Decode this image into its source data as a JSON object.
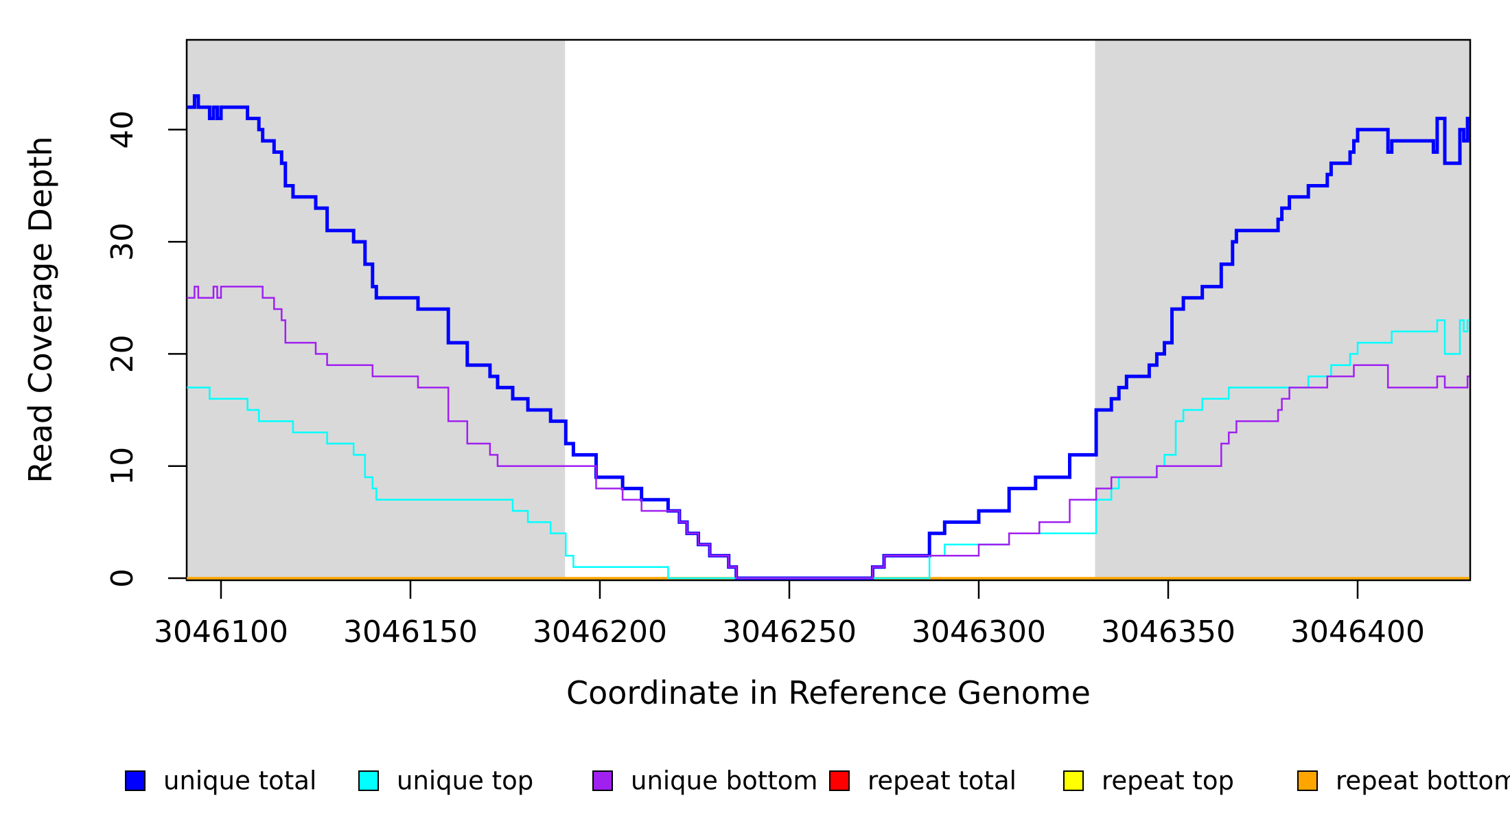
{
  "chart_data": {
    "type": "line",
    "subtype": "step-after-coverage",
    "title": "",
    "xlabel": "Coordinate in Reference Genome",
    "ylabel": "Read Coverage Depth",
    "x_range": [
      3046091,
      3046430
    ],
    "y_range": [
      0,
      48
    ],
    "x_ticks": [
      3046100,
      3046150,
      3046200,
      3046250,
      3046300,
      3046350,
      3046400
    ],
    "y_ticks": [
      0,
      10,
      20,
      30,
      40
    ],
    "grid": "off",
    "background_color": "#ffffff",
    "shaded_region_color": "#d9d9d9",
    "shaded_regions": [
      {
        "name": "left-repeat-region",
        "from": 3046091,
        "to": 3046190.8
      },
      {
        "name": "right-repeat-region",
        "from": 3046330.7,
        "to": 3046430
      }
    ],
    "legend": {
      "position": "bottom",
      "items": [
        {
          "label": "unique total",
          "color": "#0000FF"
        },
        {
          "label": "unique top",
          "color": "#00FFFF"
        },
        {
          "label": "unique bottom",
          "color": "#A020F0"
        },
        {
          "label": "repeat total",
          "color": "#FF0000"
        },
        {
          "label": "repeat top",
          "color": "#FFFF00"
        },
        {
          "label": "repeat bottom",
          "color": "#FFA500"
        }
      ]
    },
    "series": [
      {
        "name": "unique total",
        "color": "#0000FF",
        "width": 5,
        "z": 4,
        "points": [
          [
            3046091,
            42
          ],
          [
            3046093,
            43
          ],
          [
            3046094,
            42
          ],
          [
            3046097,
            41
          ],
          [
            3046098,
            42
          ],
          [
            3046099,
            41
          ],
          [
            3046100,
            42
          ],
          [
            3046107,
            41
          ],
          [
            3046110,
            40
          ],
          [
            3046111,
            39
          ],
          [
            3046114,
            38
          ],
          [
            3046116,
            37
          ],
          [
            3046117,
            35
          ],
          [
            3046119,
            34
          ],
          [
            3046125,
            33
          ],
          [
            3046128,
            31
          ],
          [
            3046135,
            30
          ],
          [
            3046138,
            28
          ],
          [
            3046140,
            26
          ],
          [
            3046141,
            25
          ],
          [
            3046152,
            24
          ],
          [
            3046160,
            21
          ],
          [
            3046165,
            19
          ],
          [
            3046171,
            18
          ],
          [
            3046173,
            17
          ],
          [
            3046177,
            16
          ],
          [
            3046181,
            15
          ],
          [
            3046187,
            14
          ],
          [
            3046191,
            12
          ],
          [
            3046193,
            11
          ],
          [
            3046199,
            9
          ],
          [
            3046206,
            8
          ],
          [
            3046211,
            7
          ],
          [
            3046218,
            6
          ],
          [
            3046221,
            5
          ],
          [
            3046223,
            4
          ],
          [
            3046226,
            3
          ],
          [
            3046229,
            2
          ],
          [
            3046234,
            1
          ],
          [
            3046236,
            0
          ],
          [
            3046272,
            1
          ],
          [
            3046275,
            2
          ],
          [
            3046287,
            4
          ],
          [
            3046291,
            5
          ],
          [
            3046300,
            6
          ],
          [
            3046308,
            8
          ],
          [
            3046315,
            9
          ],
          [
            3046324,
            11
          ],
          [
            3046331,
            15
          ],
          [
            3046335,
            16
          ],
          [
            3046337,
            17
          ],
          [
            3046339,
            18
          ],
          [
            3046345,
            19
          ],
          [
            3046347,
            20
          ],
          [
            3046349,
            21
          ],
          [
            3046351,
            24
          ],
          [
            3046354,
            25
          ],
          [
            3046359,
            26
          ],
          [
            3046364,
            28
          ],
          [
            3046367,
            30
          ],
          [
            3046368,
            31
          ],
          [
            3046379,
            32
          ],
          [
            3046380,
            33
          ],
          [
            3046382,
            34
          ],
          [
            3046387,
            35
          ],
          [
            3046392,
            36
          ],
          [
            3046393,
            37
          ],
          [
            3046398,
            38
          ],
          [
            3046399,
            39
          ],
          [
            3046400,
            40
          ],
          [
            3046408,
            38
          ],
          [
            3046409,
            39
          ],
          [
            3046420,
            38
          ],
          [
            3046421,
            41
          ],
          [
            3046423,
            37
          ],
          [
            3046427,
            40
          ],
          [
            3046428,
            39
          ],
          [
            3046429,
            41
          ]
        ]
      },
      {
        "name": "unique top",
        "color": "#00FFFF",
        "width": 2.5,
        "z": 5,
        "points": [
          [
            3046091,
            17
          ],
          [
            3046097,
            16
          ],
          [
            3046107,
            15
          ],
          [
            3046110,
            14
          ],
          [
            3046119,
            13
          ],
          [
            3046128,
            12
          ],
          [
            3046135,
            11
          ],
          [
            3046138,
            9
          ],
          [
            3046140,
            8
          ],
          [
            3046141,
            7
          ],
          [
            3046177,
            6
          ],
          [
            3046181,
            5
          ],
          [
            3046187,
            4
          ],
          [
            3046191,
            2
          ],
          [
            3046193,
            1
          ],
          [
            3046218,
            0
          ],
          [
            3046287,
            2
          ],
          [
            3046291,
            3
          ],
          [
            3046308,
            4
          ],
          [
            3046331,
            7
          ],
          [
            3046335,
            8
          ],
          [
            3046337,
            9
          ],
          [
            3046347,
            10
          ],
          [
            3046349,
            11
          ],
          [
            3046352,
            14
          ],
          [
            3046354,
            15
          ],
          [
            3046359,
            16
          ],
          [
            3046366,
            17
          ],
          [
            3046387,
            18
          ],
          [
            3046393,
            19
          ],
          [
            3046398,
            20
          ],
          [
            3046400,
            21
          ],
          [
            3046409,
            22
          ],
          [
            3046421,
            23
          ],
          [
            3046423,
            20
          ],
          [
            3046427,
            23
          ],
          [
            3046428,
            22
          ],
          [
            3046429,
            23
          ]
        ]
      },
      {
        "name": "unique bottom",
        "color": "#A020F0",
        "width": 2.5,
        "z": 6,
        "points": [
          [
            3046091,
            25
          ],
          [
            3046093,
            26
          ],
          [
            3046094,
            25
          ],
          [
            3046098,
            26
          ],
          [
            3046099,
            25
          ],
          [
            3046100,
            26
          ],
          [
            3046111,
            25
          ],
          [
            3046114,
            24
          ],
          [
            3046116,
            23
          ],
          [
            3046117,
            21
          ],
          [
            3046125,
            20
          ],
          [
            3046128,
            19
          ],
          [
            3046140,
            18
          ],
          [
            3046152,
            17
          ],
          [
            3046160,
            14
          ],
          [
            3046165,
            12
          ],
          [
            3046171,
            11
          ],
          [
            3046173,
            10
          ],
          [
            3046199,
            8
          ],
          [
            3046206,
            7
          ],
          [
            3046211,
            6
          ],
          [
            3046221,
            5
          ],
          [
            3046223,
            4
          ],
          [
            3046226,
            3
          ],
          [
            3046229,
            2
          ],
          [
            3046234,
            1
          ],
          [
            3046236,
            0
          ],
          [
            3046272,
            1
          ],
          [
            3046275,
            2
          ],
          [
            3046300,
            3
          ],
          [
            3046308,
            4
          ],
          [
            3046316,
            5
          ],
          [
            3046324,
            7
          ],
          [
            3046331,
            8
          ],
          [
            3046335,
            9
          ],
          [
            3046347,
            10
          ],
          [
            3046364,
            12
          ],
          [
            3046366,
            13
          ],
          [
            3046368,
            14
          ],
          [
            3046379,
            15
          ],
          [
            3046380,
            16
          ],
          [
            3046382,
            17
          ],
          [
            3046392,
            18
          ],
          [
            3046399,
            19
          ],
          [
            3046408,
            17
          ],
          [
            3046421,
            18
          ],
          [
            3046423,
            17
          ],
          [
            3046429,
            18
          ]
        ]
      },
      {
        "name": "repeat total",
        "color": "#FF0000",
        "width": 2.5,
        "z": 1,
        "points": [
          [
            3046091,
            0
          ]
        ]
      },
      {
        "name": "repeat top",
        "color": "#FFFF00",
        "width": 2.5,
        "z": 2,
        "points": [
          [
            3046091,
            0
          ]
        ]
      },
      {
        "name": "repeat bottom",
        "color": "#FFA500",
        "width": 3.5,
        "z": 3,
        "points": [
          [
            3046091,
            0
          ]
        ]
      }
    ]
  }
}
